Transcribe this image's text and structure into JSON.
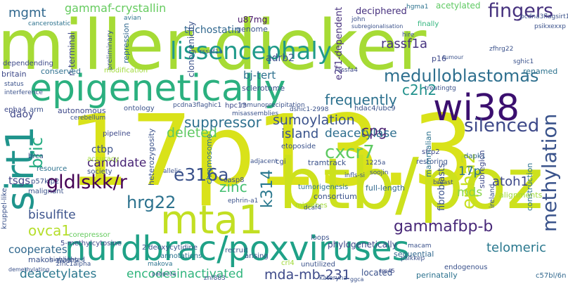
{
  "cloud": {
    "words": [
      {
        "text": "miller-dieker",
        "color": "#a6db35"
      },
      {
        "text": "17p13.3",
        "color": "#d9e21a"
      },
      {
        "text": "btb/poz",
        "color": "#cde11d"
      },
      {
        "text": "epigenetically",
        "color": "#2bb07f"
      },
      {
        "text": "nurdbrac/poxviruses",
        "color": "#1fa187"
      },
      {
        "text": "wi38",
        "color": "#3b0f6f"
      },
      {
        "text": "mta1",
        "color": "#c2df23"
      },
      {
        "text": "sirt1",
        "color": "#1f948c"
      },
      {
        "text": "lissencephaly",
        "color": "#1f9a8a"
      },
      {
        "text": "medulloblastomas",
        "color": "#2e6f8e"
      },
      {
        "text": "silenced",
        "color": "#3e4989"
      },
      {
        "text": "fingers",
        "color": "#46327e"
      },
      {
        "text": "methylation",
        "color": "#3a538b"
      },
      {
        "text": "gldlskk/r",
        "color": "#440154"
      },
      {
        "text": "hrg22",
        "color": "#2c728e"
      },
      {
        "text": "e316a",
        "color": "#3b528b"
      },
      {
        "text": "cxcr7",
        "color": "#5ec962"
      },
      {
        "text": "epha2",
        "color": "#c8e020"
      },
      {
        "text": "k314",
        "color": "#2a788e"
      },
      {
        "text": "gammafbp-b",
        "color": "#482878"
      },
      {
        "text": "mda-mb-231",
        "color": "#3e4a89"
      },
      {
        "text": "encodesinactivated",
        "color": "#2fb47c"
      },
      {
        "text": "deacetylates",
        "color": "#2a778e"
      },
      {
        "text": "ovca1",
        "color": "#b5de2b"
      },
      {
        "text": "c2h2",
        "color": "#21918c"
      },
      {
        "text": "suppressor",
        "color": "#2d708e"
      },
      {
        "text": "sumoylation",
        "color": "#3b528b"
      },
      {
        "text": "frequently",
        "color": "#2c718e"
      },
      {
        "text": "cpg",
        "color": "#481f70"
      },
      {
        "text": "island",
        "color": "#3a548c"
      },
      {
        "text": "deacetylase",
        "color": "#2e6e8e"
      },
      {
        "text": "candidate",
        "color": "#482475"
      },
      {
        "text": "deleted",
        "color": "#5ec962"
      },
      {
        "text": "bric",
        "color": "#25ac82"
      },
      {
        "text": "zinc",
        "color": "#44bf70"
      },
      {
        "text": "telomeric",
        "color": "#2a788e"
      },
      {
        "text": "bisulfite",
        "color": "#3b528b"
      },
      {
        "text": "cooperates",
        "color": "#31688e"
      },
      {
        "text": "17p",
        "color": "#2c728e"
      },
      {
        "text": "atoh1",
        "color": "#3e4989"
      },
      {
        "text": "mds",
        "color": "#89d548"
      },
      {
        "text": "rassf1a",
        "color": "#46337f"
      },
      {
        "text": "mgmt",
        "color": "#31688e"
      },
      {
        "text": "daoy",
        "color": "#3f4788"
      },
      {
        "text": "tsgs",
        "color": "#414487"
      },
      {
        "text": "ctbp",
        "color": "#3b518b"
      },
      {
        "text": "bj-tert",
        "color": "#2d708e"
      },
      {
        "text": "adrb2",
        "color": "#3b528b"
      },
      {
        "text": "renamed",
        "color": "#2c728e"
      },
      {
        "text": "p16",
        "color": "#3e4989"
      },
      {
        "text": "deciphered",
        "color": "#46307e"
      },
      {
        "text": "trichostatin",
        "color": "#31688e"
      },
      {
        "text": "gammaf-crystallin",
        "color": "#65cb5e"
      },
      {
        "text": "u87mg",
        "color": "#481668"
      },
      {
        "text": "genome",
        "color": "#3a548c"
      },
      {
        "text": "acetylated",
        "color": "#5ec962"
      },
      {
        "text": "finally",
        "color": "#2fb47c"
      },
      {
        "text": "hgma1",
        "color": "#2c728e"
      },
      {
        "text": "john",
        "color": "#3b528b"
      },
      {
        "text": "avian",
        "color": "#2c728e"
      },
      {
        "text": "cancerostatic",
        "color": "#2c728e"
      },
      {
        "text": "dependending",
        "color": "#3e4a89"
      },
      {
        "text": "preliminary",
        "color": "#3b528b"
      },
      {
        "text": "repression",
        "color": "#31688e"
      },
      {
        "text": "n-terminal",
        "color": "#3e4989"
      },
      {
        "text": "clonogenicity",
        "color": "#3b528b"
      },
      {
        "text": "e2f1-dependent",
        "color": "#46307e"
      },
      {
        "text": "conserved",
        "color": "#2e6f8e"
      },
      {
        "text": "modification",
        "color": "#a0da39"
      },
      {
        "text": "sclerotome",
        "color": "#3b528b"
      },
      {
        "text": "ontology",
        "color": "#3b528b"
      },
      {
        "text": "autonomous",
        "color": "#3e4989"
      },
      {
        "text": "hdac4/ubc9",
        "color": "#3b528b"
      },
      {
        "text": "hpc13",
        "color": "#3e4989"
      },
      {
        "text": "pipeline",
        "color": "#3e4989"
      },
      {
        "text": "heterozygosity",
        "color": "#3b528b"
      },
      {
        "text": "chromosome",
        "color": "#2c728e"
      },
      {
        "text": "etoposide",
        "color": "#3b528b"
      },
      {
        "text": "tramtrack",
        "color": "#3b528b"
      },
      {
        "text": "restoring",
        "color": "#3a548c"
      },
      {
        "text": "sfrp2",
        "color": "#3e4989"
      },
      {
        "text": "dapk1",
        "color": "#31688e"
      },
      {
        "text": "ireland",
        "color": "#3b528b"
      },
      {
        "text": "construction",
        "color": "#2c728e"
      },
      {
        "text": "alignments",
        "color": "#a0da39"
      },
      {
        "text": "tumorigenesis",
        "color": "#2c728e"
      },
      {
        "text": "consortium",
        "color": "#3b528b"
      },
      {
        "text": "full-length",
        "color": "#31688e"
      },
      {
        "text": "phylogenetically",
        "color": "#3e4989"
      },
      {
        "text": "sequential",
        "color": "#31688e"
      },
      {
        "text": "perinatally",
        "color": "#2c728e"
      },
      {
        "text": "located",
        "color": "#3b528b"
      },
      {
        "text": "loops",
        "color": "#3b528b"
      },
      {
        "text": "corepressor",
        "color": "#65cb5e"
      },
      {
        "text": "5-methylcytosine",
        "color": "#3e4989"
      },
      {
        "text": "makos-wales",
        "color": "#3b528b"
      },
      {
        "text": "malignant",
        "color": "#3b528b"
      },
      {
        "text": "p57kip2",
        "color": "#3b528b"
      },
      {
        "text": "resource",
        "color": "#2c728e"
      },
      {
        "text": "brca",
        "color": "#3b528b"
      },
      {
        "text": "kruppel-like",
        "color": "#3b528b"
      },
      {
        "text": "accuracy",
        "color": "#a0da39"
      },
      {
        "text": "society",
        "color": "#3b528b"
      },
      {
        "text": "casp8",
        "color": "#3e4989"
      },
      {
        "text": "recruit",
        "color": "#3b528b"
      },
      {
        "text": "annotations",
        "color": "#2c728e"
      },
      {
        "text": "makova",
        "color": "#2c728e"
      },
      {
        "text": "arising",
        "color": "#3b528b"
      },
      {
        "text": "crl4",
        "color": "#a0da39"
      },
      {
        "text": "unutilized",
        "color": "#3b528b"
      },
      {
        "text": "endogenous",
        "color": "#3b528b"
      },
      {
        "text": "c57bl/6n",
        "color": "#31688e"
      },
      {
        "text": "trp45",
        "color": "#3e4989"
      },
      {
        "text": "kateryna",
        "color": "#3b528b"
      },
      {
        "text": "znf883",
        "color": "#3b528b"
      },
      {
        "text": "ggca",
        "color": "#3b528b"
      },
      {
        "text": "2'deoxycytidine",
        "color": "#3b528b"
      },
      {
        "text": "fibroblasts",
        "color": "#3b528b"
      },
      {
        "text": "mammalian",
        "color": "#2c728e"
      },
      {
        "text": "subregion",
        "color": "#3e4989"
      },
      {
        "text": "cgi",
        "color": "#3b528b"
      },
      {
        "text": "zfhc1alpha",
        "color": "#3b528b"
      },
      {
        "text": "highlighted",
        "color": "#3b528b"
      },
      {
        "text": "demethylating",
        "color": "#3b528b"
      },
      {
        "text": "pabpc1a",
        "color": "#3b528b"
      },
      {
        "text": "britain",
        "color": "#3e4989"
      },
      {
        "text": "status",
        "color": "#3b528b"
      },
      {
        "text": "interference",
        "color": "#3b528b"
      },
      {
        "text": "epha4",
        "color": "#3e4989"
      },
      {
        "text": "arm",
        "color": "#3b528b"
      },
      {
        "text": "cerebellum",
        "color": "#3b528b"
      },
      {
        "text": "pcdna3flaghic1",
        "color": "#3b528b"
      },
      {
        "text": "immunoprecipitation",
        "color": "#3b528b"
      },
      {
        "text": "misassemblies",
        "color": "#3b528b"
      },
      {
        "text": "dshic1-2998",
        "color": "#3b528b"
      },
      {
        "text": "rassfa4",
        "color": "#3e4989"
      },
      {
        "text": "rssaf1a",
        "color": "#3b528b"
      },
      {
        "text": "zfhrg22",
        "color": "#3b528b"
      },
      {
        "text": "sghic1",
        "color": "#3b528b"
      },
      {
        "text": "psikxexxp",
        "color": "#3b528b"
      },
      {
        "text": "pcdna3flagsirt1",
        "color": "#3b528b"
      },
      {
        "text": "hire",
        "color": "#3b528b"
      },
      {
        "text": "tumour",
        "color": "#3b528b"
      },
      {
        "text": "subregionalisation",
        "color": "#3b528b"
      },
      {
        "text": "psikkep",
        "color": "#3b528b"
      },
      {
        "text": "soojin",
        "color": "#3b528b"
      },
      {
        "text": "1225a",
        "color": "#3b528b"
      },
      {
        "text": "adjacent",
        "color": "#3b528b"
      },
      {
        "text": "infls-si",
        "color": "#3b528b"
      },
      {
        "text": "allelic",
        "color": "#3b528b"
      },
      {
        "text": "ephrin-a1",
        "color": "#3b528b"
      },
      {
        "text": "microbes",
        "color": "#a0da39"
      },
      {
        "text": "breast",
        "color": "#3b528b"
      },
      {
        "text": "macam",
        "color": "#3b528b"
      },
      {
        "text": "dcaf4",
        "color": "#3b528b"
      },
      {
        "text": "treatingtg",
        "color": "#3b528b"
      }
    ]
  }
}
